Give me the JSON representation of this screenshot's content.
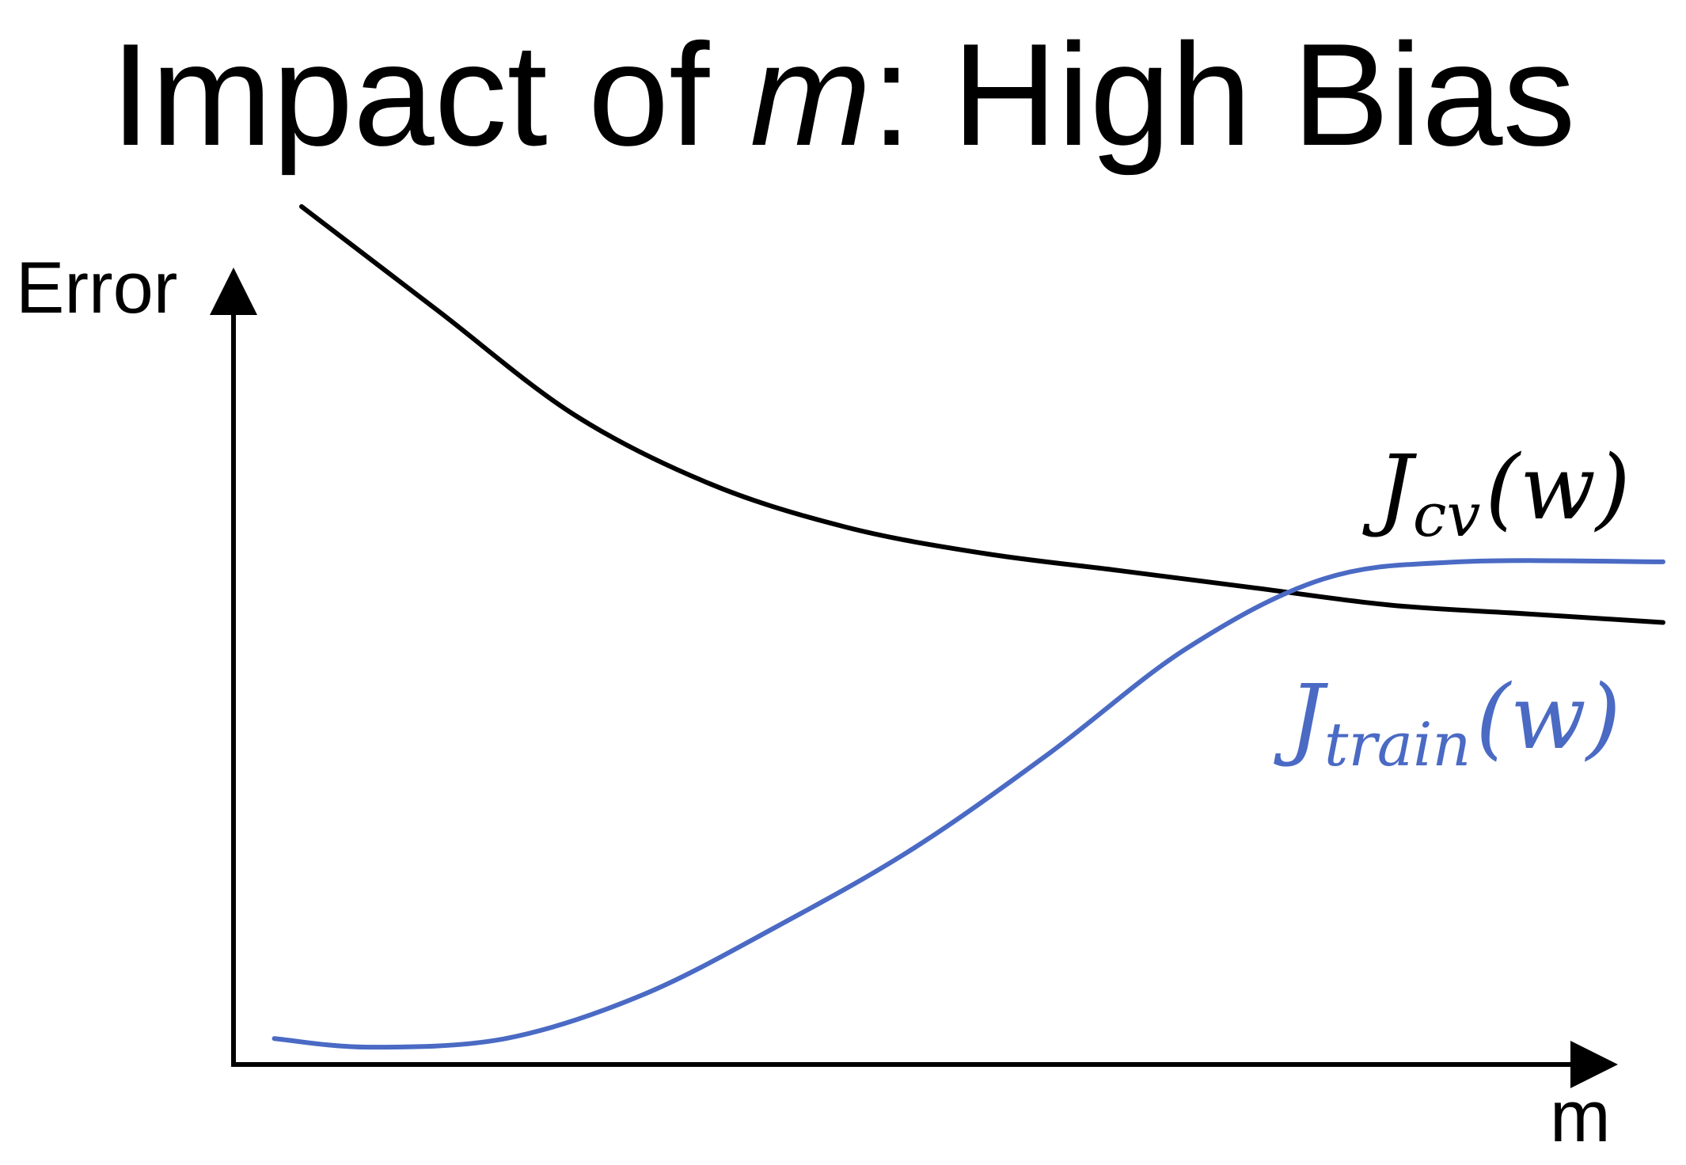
{
  "title": {
    "prefix": "Impact of ",
    "variable": "m",
    "suffix": ": High Bias"
  },
  "chart_data": {
    "type": "line",
    "title": "Impact of m: High Bias",
    "xlabel": "m",
    "ylabel": "Error",
    "xlim": [
      0,
      10
    ],
    "ylim": [
      0,
      10
    ],
    "grid": false,
    "ticks": false,
    "series": [
      {
        "name": "J_cv(w)",
        "label": {
          "main": "J",
          "sub": "cv",
          "arg": "(w)"
        },
        "color": "#000000",
        "x": [
          0.5,
          1.5,
          2.5,
          3.5,
          4.5,
          5.5,
          6.5,
          7.5,
          8.5,
          9.5,
          10.5
        ],
        "y": [
          9.9,
          8.7,
          7.5,
          6.7,
          6.2,
          5.9,
          5.7,
          5.5,
          5.3,
          5.2,
          5.1
        ]
      },
      {
        "name": "J_train(w)",
        "label": {
          "main": "J",
          "sub": "train",
          "arg": "(w)"
        },
        "color": "#4a6ac4",
        "x": [
          0.3,
          1.0,
          2.0,
          3.0,
          4.0,
          5.0,
          6.0,
          7.0,
          8.0,
          9.0,
          10.5
        ],
        "y": [
          0.3,
          0.2,
          0.3,
          0.8,
          1.6,
          2.5,
          3.6,
          4.8,
          5.6,
          5.8,
          5.8
        ]
      }
    ]
  }
}
